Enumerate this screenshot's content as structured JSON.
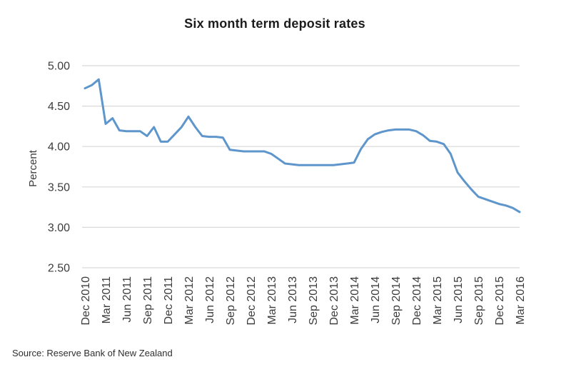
{
  "chart_data": {
    "type": "line",
    "title": "Six month term deposit rates",
    "ylabel": "Percent",
    "xlabel": "",
    "x_axis": {
      "start": "Dec 2010",
      "end": "Mar 2016",
      "interval": "monthly"
    },
    "x_tick_labels": [
      "Dec 2010",
      "Mar 2011",
      "Jun 2011",
      "Sep 2011",
      "Dec 2011",
      "Mar 2012",
      "Jun 2012",
      "Sep 2012",
      "Dec 2012",
      "Mar 2013",
      "Jun 2013",
      "Sep 2013",
      "Dec 2013",
      "Mar 2014",
      "Jun 2014",
      "Sep 2014",
      "Dec 2014",
      "Mar 2015",
      "Jun 2015",
      "Sep 2015",
      "Dec 2015",
      "Mar 2016"
    ],
    "y_tick_labels": [
      "5.00",
      "4.50",
      "4.00",
      "3.50",
      "3.00",
      "2.50"
    ],
    "ylim": [
      2.5,
      5.0
    ],
    "grid": "horizontal",
    "legend": "none",
    "values": [
      4.72,
      4.76,
      4.83,
      4.28,
      4.35,
      4.2,
      4.19,
      4.19,
      4.19,
      4.13,
      4.24,
      4.06,
      4.06,
      4.15,
      4.24,
      4.37,
      4.24,
      4.13,
      4.12,
      4.12,
      4.11,
      3.96,
      3.95,
      3.94,
      3.94,
      3.94,
      3.94,
      3.91,
      3.85,
      3.79,
      3.78,
      3.77,
      3.77,
      3.77,
      3.77,
      3.77,
      3.77,
      3.78,
      3.79,
      3.8,
      3.97,
      4.09,
      4.15,
      4.18,
      4.2,
      4.21,
      4.21,
      4.21,
      4.19,
      4.14,
      4.07,
      4.06,
      4.03,
      3.91,
      3.68,
      3.57,
      3.47,
      3.38,
      3.35,
      3.32,
      3.29,
      3.27,
      3.24,
      3.19
    ],
    "colors": {
      "line": "#5E96CC",
      "grid": "#D9D9D9",
      "tick_text": "#3C3C3C",
      "title_text": "#1C1C1C"
    }
  },
  "source_text": "Source: Reserve Bank of New Zealand"
}
